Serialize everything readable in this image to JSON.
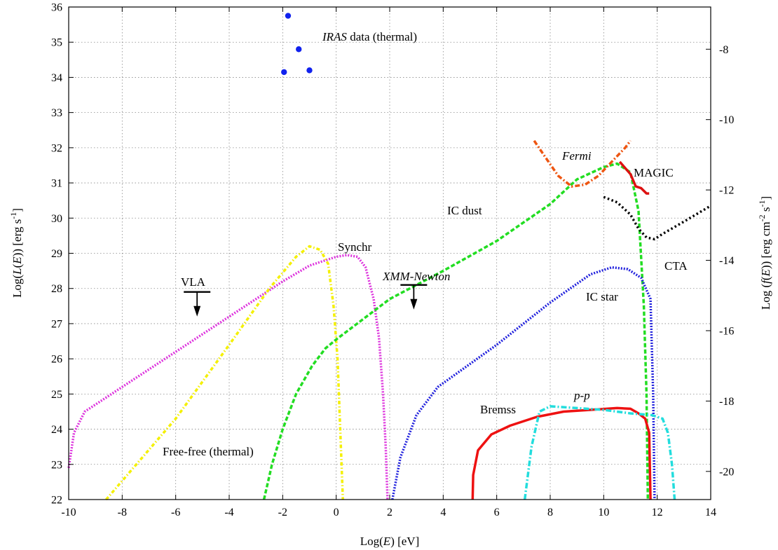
{
  "chart_data": {
    "type": "line",
    "xlabel": "Log(E) [eV]",
    "ylabel": "Log(L(E)) [erg s-1]",
    "y2label": "Log (f(E)) [erg cm-2 s-1]",
    "xlim": [
      -10,
      14
    ],
    "ylim": [
      22,
      36
    ],
    "grid": true,
    "x_ticks": [
      "-10",
      "-8",
      "-6",
      "-4",
      "-2",
      "0",
      "2",
      "4",
      "6",
      "8",
      "10",
      "12",
      "14"
    ],
    "y_ticks": [
      "22",
      "23",
      "24",
      "25",
      "26",
      "27",
      "28",
      "29",
      "30",
      "31",
      "32",
      "33",
      "34",
      "35",
      "36"
    ],
    "y2_ticks": [
      {
        "label": "-8",
        "y": 34.8
      },
      {
        "label": "-10",
        "y": 32.8
      },
      {
        "label": "-12",
        "y": 30.8
      },
      {
        "label": "-14",
        "y": 28.8
      },
      {
        "label": "-16",
        "y": 26.8
      },
      {
        "label": "-18",
        "y": 24.8
      },
      {
        "label": "-20",
        "y": 22.8
      }
    ],
    "series": [
      {
        "name": "Synchr",
        "color": "#dd33dd",
        "dash": "2 2",
        "points": [
          [
            -10,
            22.9
          ],
          [
            -9.8,
            23.9
          ],
          [
            -9.4,
            24.5
          ],
          [
            -8,
            25.2
          ],
          [
            -6,
            26.2
          ],
          [
            -4,
            27.2
          ],
          [
            -2,
            28.2
          ],
          [
            -1,
            28.65
          ],
          [
            0,
            28.9
          ],
          [
            0.4,
            28.95
          ],
          [
            0.8,
            28.9
          ],
          [
            1.1,
            28.6
          ],
          [
            1.4,
            27.7
          ],
          [
            1.6,
            26.6
          ],
          [
            1.75,
            25.0
          ],
          [
            1.85,
            23.5
          ],
          [
            1.92,
            22.0
          ]
        ]
      },
      {
        "name": "Free-free (thermal)",
        "color": "#f4f000",
        "dash": "5 3 1.5 3",
        "points": [
          [
            -8.6,
            22.0
          ],
          [
            -6,
            24.3
          ],
          [
            -4,
            26.4
          ],
          [
            -2.5,
            28.0
          ],
          [
            -1.5,
            28.9
          ],
          [
            -1.0,
            29.2
          ],
          [
            -0.6,
            29.1
          ],
          [
            -0.3,
            28.7
          ],
          [
            -0.1,
            27.5
          ],
          [
            0.05,
            26.0
          ],
          [
            0.15,
            24.0
          ],
          [
            0.25,
            22.0
          ]
        ]
      },
      {
        "name": "IC dust",
        "color": "#22dd22",
        "dash": "6 3",
        "points": [
          [
            -2.7,
            22.0
          ],
          [
            -2.4,
            23.0
          ],
          [
            -2.0,
            24.0
          ],
          [
            -1.5,
            25.0
          ],
          [
            -0.9,
            25.8
          ],
          [
            -0.4,
            26.3
          ],
          [
            0,
            26.55
          ],
          [
            2,
            27.7
          ],
          [
            4,
            28.5
          ],
          [
            6,
            29.35
          ],
          [
            8,
            30.4
          ],
          [
            9,
            31.1
          ],
          [
            10,
            31.45
          ],
          [
            10.5,
            31.55
          ],
          [
            11,
            31.3
          ],
          [
            11.3,
            30.2
          ],
          [
            11.5,
            27.5
          ],
          [
            11.6,
            25.0
          ],
          [
            11.65,
            22.0
          ]
        ]
      },
      {
        "name": "IC star",
        "color": "#2222dd",
        "dash": "2 2",
        "points": [
          [
            2.1,
            22.0
          ],
          [
            2.4,
            23.2
          ],
          [
            3.0,
            24.4
          ],
          [
            3.8,
            25.2
          ],
          [
            6,
            26.4
          ],
          [
            8,
            27.6
          ],
          [
            9.5,
            28.4
          ],
          [
            10.3,
            28.6
          ],
          [
            10.9,
            28.55
          ],
          [
            11.4,
            28.3
          ],
          [
            11.75,
            27.7
          ],
          [
            11.85,
            25.0
          ],
          [
            11.9,
            22.0
          ]
        ]
      },
      {
        "name": "Bremss",
        "color": "#ee1111",
        "dash": "",
        "points": [
          [
            5.1,
            22.0
          ],
          [
            5.12,
            22.7
          ],
          [
            5.3,
            23.4
          ],
          [
            5.8,
            23.85
          ],
          [
            6.5,
            24.1
          ],
          [
            7.5,
            24.35
          ],
          [
            8.5,
            24.5
          ],
          [
            9.5,
            24.55
          ],
          [
            10.5,
            24.6
          ],
          [
            11.0,
            24.58
          ],
          [
            11.3,
            24.45
          ],
          [
            11.55,
            24.3
          ],
          [
            11.7,
            23.9
          ],
          [
            11.75,
            22.0
          ]
        ]
      },
      {
        "name": "p-p",
        "color": "#22dddd",
        "dash": "8 3 2 3",
        "points": [
          [
            7.05,
            22.0
          ],
          [
            7.3,
            23.5
          ],
          [
            7.6,
            24.5
          ],
          [
            8.0,
            24.65
          ],
          [
            9,
            24.6
          ],
          [
            10,
            24.55
          ],
          [
            11,
            24.45
          ],
          [
            11.8,
            24.4
          ],
          [
            12.2,
            24.3
          ],
          [
            12.4,
            23.9
          ],
          [
            12.55,
            23.0
          ],
          [
            12.65,
            22.0
          ]
        ]
      },
      {
        "name": "Fermi",
        "color": "#ee5511",
        "dash": "7 3 2 3",
        "points": [
          [
            7.4,
            32.2
          ],
          [
            7.8,
            31.75
          ],
          [
            8.3,
            31.2
          ],
          [
            8.8,
            30.9
          ],
          [
            9.3,
            30.95
          ],
          [
            9.8,
            31.2
          ],
          [
            10.3,
            31.6
          ],
          [
            10.8,
            32.0
          ],
          [
            11.0,
            32.2
          ]
        ]
      },
      {
        "name": "MAGIC",
        "color": "#dd1111",
        "dash": "",
        "points": [
          [
            10.6,
            31.6
          ],
          [
            11.0,
            31.25
          ],
          [
            11.2,
            30.9
          ],
          [
            11.4,
            30.85
          ],
          [
            11.6,
            30.7
          ],
          [
            11.7,
            30.7
          ]
        ]
      },
      {
        "name": "CTA",
        "color": "#000000",
        "dash": "2.5 3.5",
        "points": [
          [
            10.0,
            30.6
          ],
          [
            10.5,
            30.45
          ],
          [
            11.0,
            30.1
          ],
          [
            11.3,
            29.7
          ],
          [
            11.6,
            29.45
          ],
          [
            11.9,
            29.4
          ],
          [
            12.2,
            29.55
          ],
          [
            13.0,
            29.9
          ],
          [
            14.0,
            30.35
          ]
        ]
      }
    ],
    "iras_points": {
      "name": "IRAS data (thermal)",
      "color": "#1122ee",
      "points": [
        [
          -1.8,
          35.75
        ],
        [
          -1.4,
          34.8
        ],
        [
          -1.0,
          34.2
        ],
        [
          -1.95,
          34.15
        ]
      ]
    },
    "upper_limits": [
      {
        "name": "VLA",
        "x": -5.2,
        "y": 27.9
      },
      {
        "name": "XMM-Newton",
        "x": 2.9,
        "y": 28.1
      }
    ],
    "labels": {
      "iras_italic": "IRAS",
      "iras_rest": " data (thermal)",
      "fermi": "Fermi",
      "magic": "MAGIC",
      "ic_dust": "IC dust",
      "synchr": "Synchr",
      "vla": "VLA",
      "xmm": "XMM-Newton",
      "ic_star": "IC star",
      "cta": "CTA",
      "bremss": "Bremss",
      "pp": "p-p",
      "free_free": "Free-free (thermal)"
    },
    "axis_text": {
      "x_pre": "Log(",
      "x_var": "E",
      "x_post": ") [eV]",
      "y_pre": "Log(",
      "y_var": "L",
      "y_mid": "(",
      "y_var2": "E",
      "y_post": ")) [erg s",
      "y_sup": "-1",
      "y_end": "]",
      "y2_pre": "Log (",
      "y2_var": "f",
      "y2_mid": "(",
      "y2_var2": "E",
      "y2_post": ")) [erg cm",
      "y2_sup1": "-2",
      "y2_mid2": " s",
      "y2_sup2": "-1",
      "y2_end": "]"
    }
  }
}
